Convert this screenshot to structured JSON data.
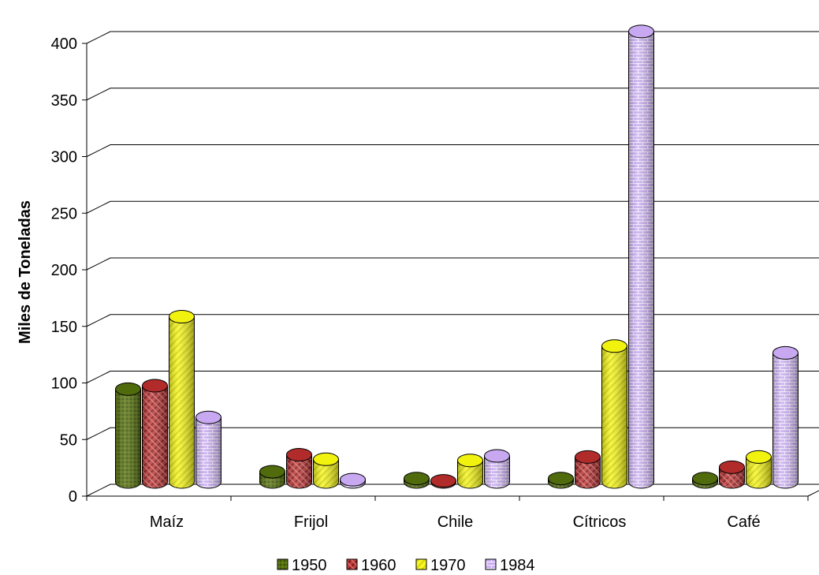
{
  "chart_data": {
    "type": "bar",
    "style": "3d-cylinder",
    "title": "",
    "xlabel": "",
    "ylabel": "Miles de Toneladas",
    "ylim": [
      0,
      400
    ],
    "yticks": [
      "0",
      "50",
      "100",
      "150",
      "200",
      "250",
      "300",
      "350",
      "400"
    ],
    "grid": true,
    "legend_position": "bottom",
    "categories": [
      "Maíz",
      "Frijol",
      "Chile",
      "Cítricos",
      "Café"
    ],
    "series": [
      {
        "name": "1950",
        "color": "#4F6B0C",
        "values": [
          82,
          9,
          3,
          3,
          3
        ]
      },
      {
        "name": "1960",
        "color": "#B22B2B",
        "values": [
          85,
          24,
          1,
          22,
          13
        ]
      },
      {
        "name": "1970",
        "color": "#F2F20F",
        "values": [
          146,
          20,
          19,
          120,
          22
        ]
      },
      {
        "name": "1984",
        "color": "#C8A8F0",
        "values": [
          57,
          2,
          23,
          398,
          114
        ]
      }
    ]
  }
}
